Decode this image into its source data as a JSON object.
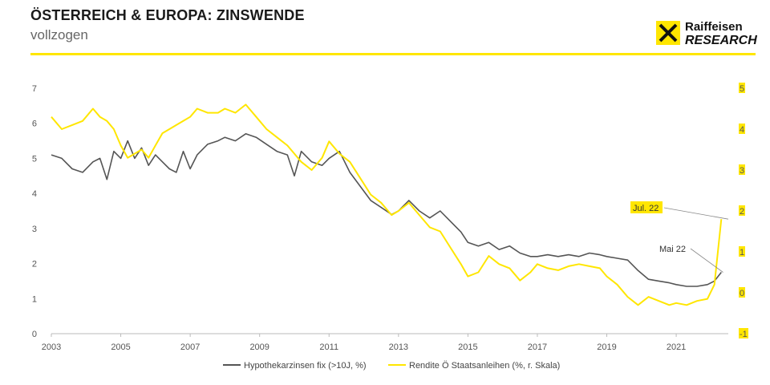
{
  "header": {
    "title": "ÖSTERREICH & EUROPA: ZINSWENDE",
    "subtitle": "vollzogen"
  },
  "logo": {
    "line1": "Raiffeisen",
    "line2": "RESEARCH",
    "accent_color": "#ffe600"
  },
  "chart_data": {
    "type": "line",
    "title": "ÖSTERREICH & EUROPA: ZINSWENDE",
    "subtitle": "vollzogen",
    "xlim": [
      2003,
      2022.5
    ],
    "x_ticks": [
      "2003",
      "2005",
      "2007",
      "2009",
      "2011",
      "2013",
      "2015",
      "2017",
      "2019",
      "2021"
    ],
    "y_left": {
      "range": [
        0,
        7
      ],
      "ticks": [
        "0",
        "1",
        "2",
        "3",
        "4",
        "5",
        "6",
        "7"
      ]
    },
    "y_right": {
      "range": [
        -1,
        5
      ],
      "ticks": [
        "-1",
        "0",
        "1",
        "2",
        "3",
        "4",
        "5"
      ],
      "tick_highlight_color": "#ffe600"
    },
    "legend_position": "bottom-center",
    "series": [
      {
        "name": "Hypothekarzinsen fix (>10J, %)",
        "axis": "left",
        "color": "#555555",
        "x": [
          2003.0,
          2003.3,
          2003.6,
          2003.9,
          2004.2,
          2004.4,
          2004.6,
          2004.8,
          2005.0,
          2005.2,
          2005.4,
          2005.6,
          2005.8,
          2006.0,
          2006.2,
          2006.4,
          2006.6,
          2006.8,
          2007.0,
          2007.2,
          2007.5,
          2007.8,
          2008.0,
          2008.3,
          2008.6,
          2008.9,
          2009.2,
          2009.5,
          2009.8,
          2010.0,
          2010.2,
          2010.5,
          2010.8,
          2011.0,
          2011.3,
          2011.6,
          2011.9,
          2012.2,
          2012.5,
          2012.8,
          2013.0,
          2013.3,
          2013.6,
          2013.9,
          2014.2,
          2014.5,
          2014.8,
          2015.0,
          2015.3,
          2015.6,
          2015.9,
          2016.2,
          2016.5,
          2016.8,
          2017.0,
          2017.3,
          2017.6,
          2017.9,
          2018.2,
          2018.5,
          2018.8,
          2019.0,
          2019.3,
          2019.6,
          2019.9,
          2020.2,
          2020.5,
          2020.8,
          2021.0,
          2021.3,
          2021.6,
          2021.9,
          2022.1,
          2022.3
        ],
        "values": [
          5.1,
          5.0,
          4.7,
          4.6,
          4.9,
          5.0,
          4.4,
          5.2,
          5.0,
          5.5,
          5.0,
          5.3,
          4.8,
          5.1,
          4.9,
          4.7,
          4.6,
          5.2,
          4.7,
          5.1,
          5.4,
          5.5,
          5.6,
          5.5,
          5.7,
          5.6,
          5.4,
          5.2,
          5.1,
          4.5,
          5.2,
          4.9,
          4.8,
          5.0,
          5.2,
          4.6,
          4.2,
          3.8,
          3.6,
          3.4,
          3.5,
          3.8,
          3.5,
          3.3,
          3.5,
          3.2,
          2.9,
          2.6,
          2.5,
          2.6,
          2.4,
          2.5,
          2.3,
          2.2,
          2.2,
          2.25,
          2.2,
          2.25,
          2.2,
          2.3,
          2.25,
          2.2,
          2.15,
          2.1,
          1.8,
          1.55,
          1.5,
          1.45,
          1.4,
          1.35,
          1.35,
          1.4,
          1.5,
          1.75
        ]
      },
      {
        "name": "Rendite Ö Staatsanleihen (%, r. Skala)",
        "axis": "right",
        "color": "#ffe600",
        "x": [
          2003.0,
          2003.3,
          2003.6,
          2003.9,
          2004.2,
          2004.4,
          2004.6,
          2004.8,
          2005.0,
          2005.2,
          2005.4,
          2005.6,
          2005.8,
          2006.0,
          2006.2,
          2006.4,
          2006.6,
          2006.8,
          2007.0,
          2007.2,
          2007.5,
          2007.8,
          2008.0,
          2008.3,
          2008.6,
          2008.9,
          2009.2,
          2009.5,
          2009.8,
          2010.0,
          2010.2,
          2010.5,
          2010.8,
          2011.0,
          2011.3,
          2011.6,
          2011.9,
          2012.2,
          2012.5,
          2012.8,
          2013.0,
          2013.3,
          2013.6,
          2013.9,
          2014.2,
          2014.5,
          2014.8,
          2015.0,
          2015.3,
          2015.6,
          2015.9,
          2016.2,
          2016.5,
          2016.8,
          2017.0,
          2017.3,
          2017.6,
          2017.9,
          2018.2,
          2018.5,
          2018.8,
          2019.0,
          2019.3,
          2019.6,
          2019.9,
          2020.2,
          2020.5,
          2020.8,
          2021.0,
          2021.3,
          2021.6,
          2021.9,
          2022.1,
          2022.3
        ],
        "values": [
          4.3,
          4.0,
          4.1,
          4.2,
          4.5,
          4.3,
          4.2,
          4.0,
          3.6,
          3.3,
          3.4,
          3.5,
          3.3,
          3.6,
          3.9,
          4.0,
          4.1,
          4.2,
          4.3,
          4.5,
          4.4,
          4.4,
          4.5,
          4.4,
          4.6,
          4.3,
          4.0,
          3.8,
          3.6,
          3.4,
          3.2,
          3.0,
          3.3,
          3.7,
          3.4,
          3.2,
          2.8,
          2.4,
          2.2,
          1.9,
          2.0,
          2.2,
          1.9,
          1.6,
          1.5,
          1.1,
          0.7,
          0.4,
          0.5,
          0.9,
          0.7,
          0.6,
          0.3,
          0.5,
          0.7,
          0.6,
          0.55,
          0.65,
          0.7,
          0.65,
          0.6,
          0.4,
          0.2,
          -0.1,
          -0.3,
          -0.1,
          -0.2,
          -0.3,
          -0.25,
          -0.3,
          -0.2,
          -0.15,
          0.2,
          1.8
        ]
      }
    ],
    "annotations": [
      {
        "label": "Jul. 22",
        "x": 2022.5,
        "y": 1.8,
        "axis": "right",
        "highlight": true
      },
      {
        "label": "Mai 22",
        "x": 2022.35,
        "y": 1.75,
        "axis": "left",
        "highlight": false
      }
    ]
  }
}
